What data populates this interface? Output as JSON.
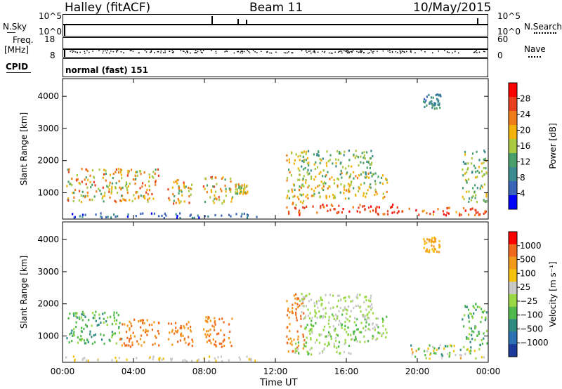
{
  "header": {
    "title": "Halley (fitACF)",
    "beam": "Beam 11",
    "date": "10/May/2015"
  },
  "panel_labels": {
    "nsky": "N.Sky",
    "nsky_top": "10^5",
    "nsky_bottom": "10^0",
    "nsearch": "N.Search",
    "nsearch_top": "10^5",
    "nsearch_bottom": "10^0",
    "freq": "Freq.",
    "freq_unit": "[MHz]",
    "freq_top": "18",
    "freq_bottom": "8",
    "nave": "Nave",
    "nave_top": "60",
    "nave_bottom": "0",
    "cpid": "CPID",
    "cpid_mode": "normal (fast) 151"
  },
  "chart_data": [
    {
      "type": "heatmap",
      "name": "power",
      "ylabel": "Slant Range [km]",
      "xlabel": "Time UT",
      "x_ticks": [
        "00:00",
        "04:00",
        "08:00",
        "12:00",
        "16:00",
        "20:00",
        "00:00"
      ],
      "y_ticks": [
        "1000",
        "2000",
        "3000",
        "4000"
      ],
      "ylim": [
        180,
        4550
      ],
      "xlim_hours": [
        0,
        24
      ],
      "colorbar": {
        "label": "Power [dB]",
        "ticks": [
          "4",
          "8",
          "12",
          "16",
          "20",
          "24",
          "28"
        ],
        "colors": [
          "#0000ff",
          "#3a64b8",
          "#3c8a8f",
          "#4aa06a",
          "#a8c940",
          "#f2b20a",
          "#ef7d1a",
          "#e8401e",
          "#ff0000"
        ]
      },
      "regions": [
        {
          "t": [
            0.2,
            5.4
          ],
          "r": [
            700,
            1750
          ],
          "c": [
            3,
            7
          ]
        },
        {
          "t": [
            5.9,
            7.3
          ],
          "r": [
            650,
            1450
          ],
          "c": [
            3,
            7
          ]
        },
        {
          "t": [
            7.9,
            9.6
          ],
          "r": [
            650,
            1500
          ],
          "c": [
            3,
            7
          ]
        },
        {
          "t": [
            9.7,
            10.4
          ],
          "r": [
            950,
            1250
          ],
          "c": [
            3,
            6
          ]
        },
        {
          "t": [
            12.6,
            19.2
          ],
          "r": [
            300,
            620
          ],
          "c": [
            6,
            8
          ]
        },
        {
          "t": [
            12.6,
            13.6
          ],
          "r": [
            600,
            2300
          ],
          "c": [
            3,
            6
          ]
        },
        {
          "t": [
            13.6,
            18.3
          ],
          "r": [
            800,
            1600
          ],
          "c": [
            3,
            6
          ]
        },
        {
          "t": [
            13.3,
            17.5
          ],
          "r": [
            1500,
            2300
          ],
          "c": [
            2,
            5
          ]
        },
        {
          "t": [
            19.5,
            23.9
          ],
          "r": [
            280,
            520
          ],
          "c": [
            5,
            8
          ]
        },
        {
          "t": [
            20.3,
            21.3
          ],
          "r": [
            3600,
            4050
          ],
          "c": [
            1,
            3
          ]
        },
        {
          "t": [
            22.5,
            23.9
          ],
          "r": [
            700,
            2300
          ],
          "c": [
            2,
            5
          ]
        },
        {
          "t": [
            0.1,
            11.0
          ],
          "r": [
            200,
            350
          ],
          "c": [
            0,
            2
          ]
        }
      ]
    },
    {
      "type": "heatmap",
      "name": "velocity",
      "ylabel": "Slant Range [km]",
      "xlabel": "Time UT",
      "x_ticks": [
        "00:00",
        "04:00",
        "08:00",
        "12:00",
        "16:00",
        "20:00",
        "00:00"
      ],
      "y_ticks": [
        "1000",
        "2000",
        "3000",
        "4000"
      ],
      "ylim": [
        180,
        4550
      ],
      "xlim_hours": [
        0,
        24
      ],
      "colorbar": {
        "label": "Velocity [m s⁻¹]",
        "ticks": [
          "1000",
          "500",
          "100",
          "25",
          "−25",
          "−100",
          "−500",
          "−1000"
        ],
        "colors": [
          "#1c3a9a",
          "#2c6fb3",
          "#2f8a82",
          "#52b94c",
          "#9bd846",
          "#c8c8c8",
          "#f3c20e",
          "#f29a1c",
          "#ef6a1f",
          "#ff0000"
        ]
      },
      "regions": [
        {
          "t": [
            0.2,
            3.3
          ],
          "r": [
            700,
            1750
          ],
          "c": [
            2,
            4
          ]
        },
        {
          "t": [
            3.2,
            5.4
          ],
          "r": [
            650,
            1500
          ],
          "c": [
            7,
            8
          ]
        },
        {
          "t": [
            5.9,
            7.3
          ],
          "r": [
            650,
            1450
          ],
          "c": [
            7,
            8
          ]
        },
        {
          "t": [
            7.9,
            9.6
          ],
          "r": [
            650,
            1600
          ],
          "c": [
            7,
            8
          ]
        },
        {
          "t": [
            12.6,
            13.6
          ],
          "r": [
            500,
            2300
          ],
          "c": [
            7,
            8
          ]
        },
        {
          "t": [
            13.0,
            16.5
          ],
          "r": [
            400,
            800
          ],
          "c": [
            3,
            5
          ]
        },
        {
          "t": [
            13.6,
            18.3
          ],
          "r": [
            800,
            1700
          ],
          "c": [
            3,
            5
          ]
        },
        {
          "t": [
            13.3,
            17.5
          ],
          "r": [
            1500,
            2300
          ],
          "c": [
            4,
            5
          ]
        },
        {
          "t": [
            19.5,
            23.9
          ],
          "r": [
            280,
            700
          ],
          "c": [
            2,
            7
          ]
        },
        {
          "t": [
            20.3,
            21.3
          ],
          "r": [
            3600,
            4050
          ],
          "c": [
            6,
            7
          ]
        },
        {
          "t": [
            22.5,
            23.9
          ],
          "r": [
            700,
            2000
          ],
          "c": [
            2,
            4
          ]
        },
        {
          "t": [
            0.1,
            11.0
          ],
          "r": [
            200,
            350
          ],
          "c": [
            5,
            6
          ]
        }
      ]
    }
  ]
}
